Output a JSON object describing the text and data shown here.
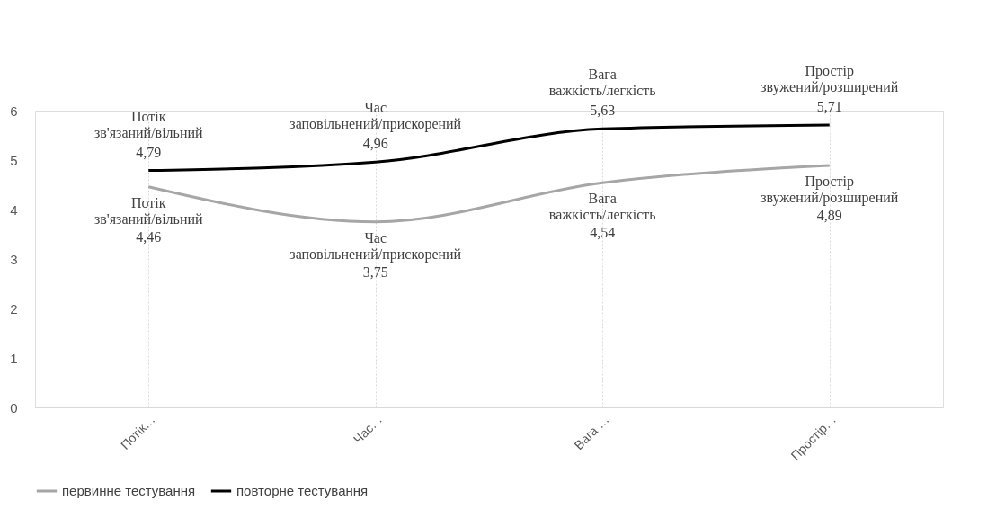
{
  "chart_data": {
    "type": "line",
    "categories": [
      "Потік…",
      "Час…",
      "Вага …",
      "Простір…"
    ],
    "series": [
      {
        "name": "первинне тестування",
        "color": "#a6a6a6",
        "values": [
          4.46,
          3.75,
          4.54,
          4.89
        ],
        "value_labels": [
          "4,46",
          "3,75",
          "4,54",
          "4,89"
        ]
      },
      {
        "name": "повторне тестування",
        "color": "#000000",
        "values": [
          4.79,
          4.96,
          5.63,
          5.71
        ],
        "value_labels": [
          "4,79",
          "4,96",
          "5,63",
          "5,71"
        ]
      }
    ],
    "annotations": [
      {
        "text": "Потік\nзв'язаний/вільний",
        "x": "Потік…",
        "y": 4.46
      },
      {
        "text": "Час\nзаповільнений/прискорений",
        "x": "Час…",
        "y": 3.75
      },
      {
        "text": "Вага\nважкість/легкість",
        "x": "Вага …",
        "y": 4.54
      },
      {
        "text": "Простір\nзвужений/розширений",
        "x": "Простір…",
        "y": 4.89
      },
      {
        "text": "Потік\nзв'язаний/вільний",
        "x": "Потік…",
        "y": 4.79
      },
      {
        "text": "Час\nзаповільнений/прискорений",
        "x": "Час…",
        "y": 4.96
      },
      {
        "text": "Вага\nважкість/легкість",
        "x": "Вага …",
        "y": 5.63
      },
      {
        "text": "Простір\nзвужений/розширений",
        "x": "Простір…",
        "y": 5.71
      }
    ],
    "ylim": [
      0,
      6
    ],
    "yticks": [
      0,
      1,
      2,
      3,
      4,
      5,
      6
    ],
    "grid": "x",
    "legend": "bottom",
    "line_style": "solid"
  }
}
